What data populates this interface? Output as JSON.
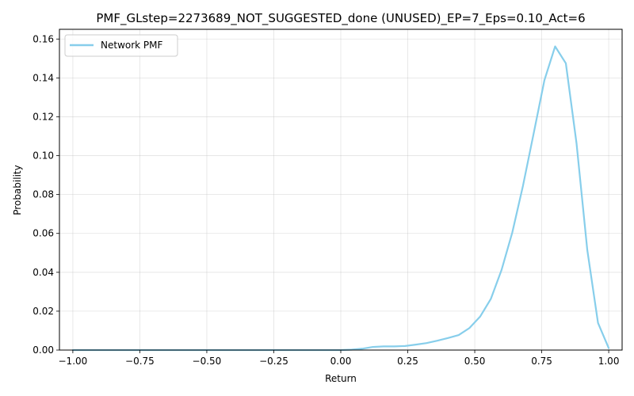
{
  "chart_data": {
    "type": "line",
    "title": "PMF_GLstep=2273689_NOT_SUGGESTED_done (UNUSED)_EP=7_Eps=0.10_Act=6",
    "xlabel": "Return",
    "ylabel": "Probability",
    "xlim": [
      -1.05,
      1.05
    ],
    "ylim": [
      0,
      0.165
    ],
    "xticks": [
      -1.0,
      -0.75,
      -0.5,
      -0.25,
      0.0,
      0.25,
      0.5,
      0.75,
      1.0
    ],
    "xtick_labels": [
      "−1.00",
      "−0.75",
      "−0.50",
      "−0.25",
      "0.00",
      "0.25",
      "0.50",
      "0.75",
      "1.00"
    ],
    "yticks": [
      0.0,
      0.02,
      0.04,
      0.06,
      0.08,
      0.1,
      0.12,
      0.14,
      0.16
    ],
    "ytick_labels": [
      "0.00",
      "0.02",
      "0.04",
      "0.06",
      "0.08",
      "0.10",
      "0.12",
      "0.14",
      "0.16"
    ],
    "grid": true,
    "legend_position": "top-left",
    "series": [
      {
        "name": "Network PMF",
        "color": "#87ceeb",
        "x": [
          -1.0,
          -0.96,
          -0.92,
          -0.88,
          -0.84,
          -0.8,
          -0.76,
          -0.72,
          -0.68,
          -0.64,
          -0.6,
          -0.56,
          -0.52,
          -0.48,
          -0.44,
          -0.4,
          -0.36,
          -0.32,
          -0.28,
          -0.24,
          -0.2,
          -0.16,
          -0.12,
          -0.08,
          -0.04,
          0.0,
          0.04,
          0.08,
          0.12,
          0.16,
          0.2,
          0.24,
          0.28,
          0.32,
          0.36,
          0.4,
          0.44,
          0.48,
          0.52,
          0.56,
          0.6,
          0.64,
          0.68,
          0.72,
          0.76,
          0.8,
          0.84,
          0.88,
          0.92,
          0.96,
          1.0
        ],
        "y": [
          0,
          0,
          0,
          0,
          0,
          0,
          0,
          0,
          0,
          0,
          0,
          0,
          0,
          0,
          0,
          0,
          0,
          0,
          0,
          0,
          0,
          0,
          0,
          0,
          0,
          0,
          0.0002,
          0.0007,
          0.0016,
          0.0019,
          0.0019,
          0.0021,
          0.0028,
          0.0036,
          0.0048,
          0.0062,
          0.0077,
          0.0113,
          0.0172,
          0.0263,
          0.0412,
          0.0604,
          0.0845,
          0.1115,
          0.1388,
          0.1562,
          0.1475,
          0.1062,
          0.0515,
          0.014,
          0.001
        ]
      }
    ]
  }
}
